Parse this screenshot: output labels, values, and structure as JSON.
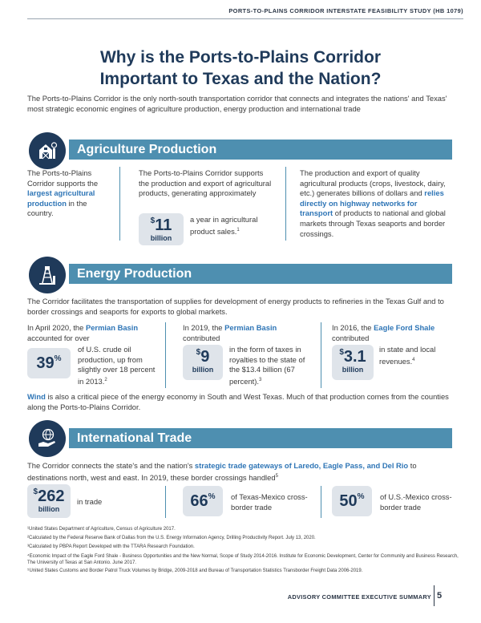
{
  "header": "PORTS-TO-PLAINS CORRIDOR INTERSTATE FEASIBILITY STUDY (HB 1079)",
  "title_line1": "Why is the Ports-to-Plains Corridor",
  "title_line2": "Important to Texas and the Nation?",
  "intro": "The Ports-to-Plains Corridor is the only north-south transportation corridor that connects and integrates the nations' and Texas' most strategic economic engines of agriculture production, energy production and international trade",
  "agriculture": {
    "heading": "Agriculture Production",
    "icon": "barn-icon",
    "col1_a": "The Ports-to-Plains Corridor supports the ",
    "col1_hl": "largest agricultural production",
    "col1_b": " in the country.",
    "col2_text": "The Ports-to-Plains Corridor supports the production and export of agricultural products, generating approximately",
    "stat_num": "11",
    "stat_unit": "billion",
    "col2_after": "a year in agricultural product sales.",
    "col2_fn": "1",
    "col3_a": "The production and export of quality agricultural products (crops, livestock, dairy, etc.) generates billions of dollars and ",
    "col3_hl": "relies directly on highway networks for transport",
    "col3_b": " of products to national and global markets through Texas seaports and border crossings."
  },
  "energy": {
    "heading": "Energy Production",
    "icon": "oil-pump-icon",
    "intro": "The Corridor facilitates the transportation of supplies for development of energy products to refineries in the Texas Gulf and to border crossings and seaports for exports to global markets.",
    "col1_a": "In April 2020, the ",
    "col1_hl": "Permian Basin",
    "col1_b": " accounted for over",
    "col1_stat": "39",
    "col1_after": "of U.S. crude oil production, up from slightly over 18 percent in 2013.",
    "col1_fn": "2",
    "col2_a": "In 2019, the ",
    "col2_hl": "Permian Basin",
    "col2_b": " contributed",
    "col2_stat": "9",
    "col2_unit": "billion",
    "col2_after": "in the form of taxes in royalties to the state of the $13.4 billion (67 percent).",
    "col2_fn": "3",
    "col3_a": "In 2016, the ",
    "col3_hl": "Eagle Ford Shale",
    "col3_b": " contributed",
    "col3_stat": "3.1",
    "col3_unit": "billion",
    "col3_after": "in state and local revenues.",
    "col3_fn": "4",
    "wind_hl": "Wind",
    "wind_text": " is also a critical piece of the energy economy in South and West Texas. Much of that production comes from the counties along the Ports-to-Plains Corridor."
  },
  "trade": {
    "heading": "International Trade",
    "icon": "globe-hand-icon",
    "intro_a": "The Corridor connects the state's and the nation's ",
    "intro_hl": "strategic trade gateways of Laredo, Eagle Pass, and Del Rio",
    "intro_b": " to destinations north, west and east. In 2019, these border crossings handled",
    "intro_fn": "5",
    "stat1_num": "262",
    "stat1_unit": "billion",
    "stat1_after": "in trade",
    "stat2_num": "66",
    "stat2_after": "of Texas-Mexico cross-border trade",
    "stat3_num": "50",
    "stat3_after": "of U.S.-Mexico cross-border trade"
  },
  "footnotes": [
    "¹United States Department of Agriculture, Census of Agriculture 2017.",
    "²Calculated by the Federal Reserve Bank of Dallas from the U.S. Energy Information Agency, Drilling Productivity Report. July 13, 2020.",
    "³Calculated by PBPA Report Developed with the TTARA Research Foundation.",
    "⁴Economic Impact of the Eagle Ford Shale - Business Opportunities and the New Normal, Scope of Study 2014-2016. Institute for Economic Development, Center for Community and Business Research, The University of Texas at San Antonio. June 2017.",
    "⁵United States Customs and Border Patrol Truck Volumes by Bridge, 2009-2018 and Bureau of Transportation Statistics Transborder Freight Data 2006-2019."
  ],
  "footer": "ADVISORY COMMITTEE EXECUTIVE SUMMARY",
  "page_number": "5",
  "symbols": {
    "dollar": "$",
    "percent": "%"
  },
  "colors": {
    "navy": "#1f3a5a",
    "band": "#4e8fb0",
    "highlight": "#2e75b6",
    "stat_bg": "#dfe4ea"
  }
}
